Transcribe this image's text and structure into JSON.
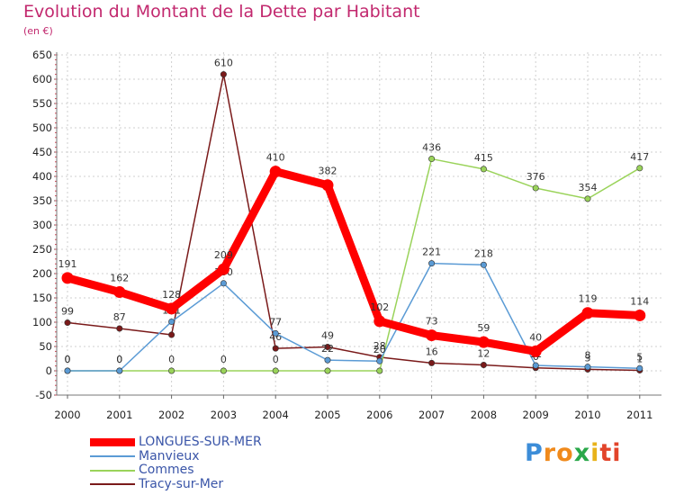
{
  "title": "Evolution du Montant de la Dette par Habitant",
  "subtitle": "(en €)",
  "logo": [
    "P",
    "r",
    "o",
    "x",
    "i",
    "t",
    "i"
  ],
  "chart_data": {
    "type": "line",
    "x": [
      "2000",
      "2001",
      "2002",
      "2003",
      "2004",
      "2005",
      "2006",
      "2007",
      "2008",
      "2009",
      "2010",
      "2011"
    ],
    "ylim": [
      -50,
      650
    ],
    "yticks": [
      -50,
      0,
      50,
      100,
      150,
      200,
      250,
      300,
      350,
      400,
      450,
      500,
      550,
      600,
      650
    ],
    "grid": true,
    "legend_position": "bottom-left",
    "series": [
      {
        "name": "LONGUES-SUR-MER",
        "color": "#ff0000",
        "width": 9,
        "values": [
          191,
          162,
          128,
          209,
          410,
          382,
          102,
          73,
          59,
          40,
          119,
          114
        ],
        "labels": [
          "191",
          "162",
          "128",
          "209",
          "410",
          "382",
          "102",
          "73",
          "59",
          "40",
          "119",
          "114"
        ]
      },
      {
        "name": "Manvieux",
        "color": "#5b9bd5",
        "width": 1.5,
        "values": [
          0,
          0,
          101,
          180,
          77,
          22,
          20,
          221,
          218,
          11,
          8,
          5
        ],
        "labels": [
          "0",
          "0",
          "101",
          "180",
          "77",
          "22",
          "20",
          "221",
          "218",
          "11",
          "8",
          "5"
        ]
      },
      {
        "name": "Commes",
        "color": "#9ad35a",
        "width": 1.5,
        "values": [
          0,
          0,
          0,
          0,
          0,
          0,
          0,
          436,
          415,
          376,
          354,
          417
        ],
        "labels": [
          "0",
          "0",
          "0",
          "0",
          "0",
          "",
          "",
          "436",
          "415",
          "376",
          "354",
          "417"
        ]
      },
      {
        "name": "Tracy-sur-Mer",
        "color": "#7a1a1a",
        "width": 1.5,
        "values": [
          99,
          87,
          74,
          610,
          46,
          49,
          28,
          16,
          12,
          6,
          3,
          1
        ],
        "labels": [
          "99",
          "87",
          "",
          "610",
          "46",
          "49",
          "28",
          "16",
          "12",
          "6",
          "3",
          "1"
        ]
      }
    ]
  }
}
